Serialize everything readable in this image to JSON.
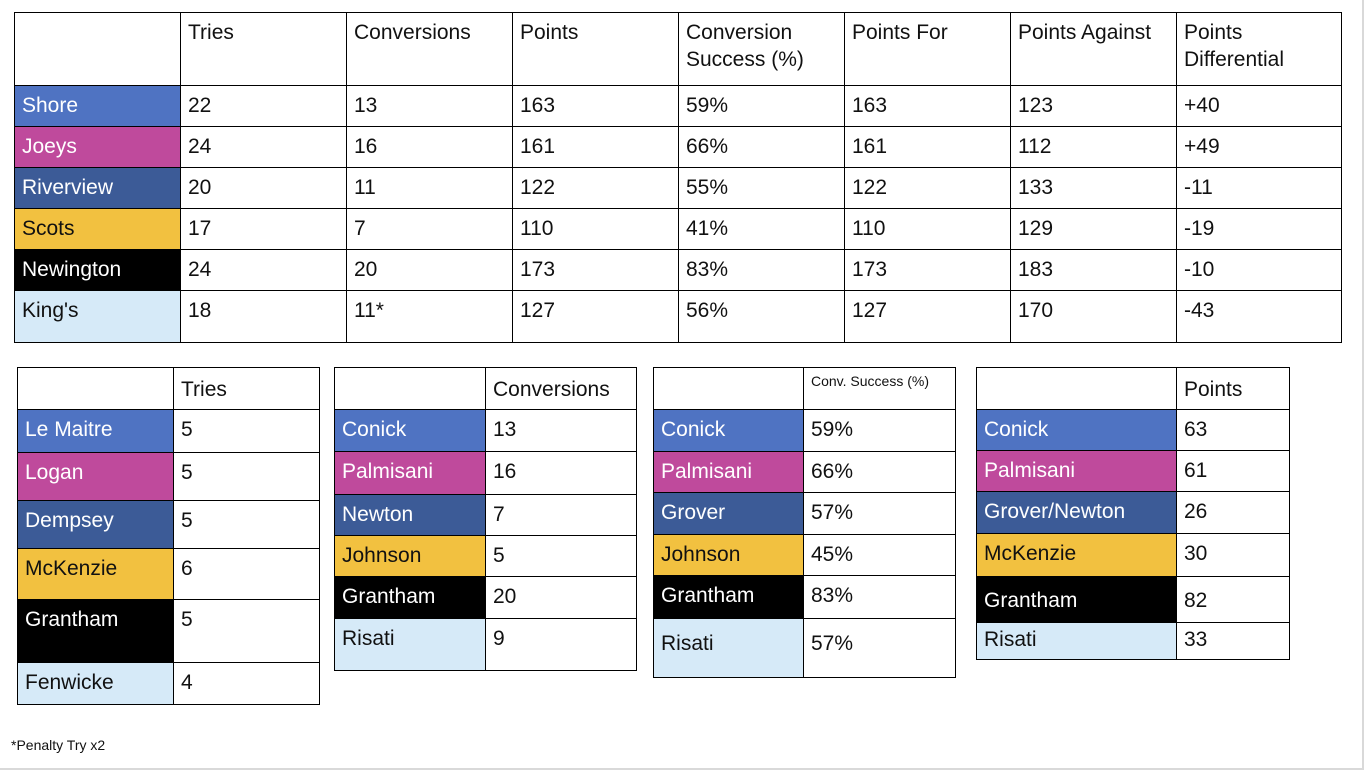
{
  "colors": {
    "shore": "#4f73c2",
    "joeys": "#bf4a9c",
    "riverview": "#3c5b97",
    "scots": "#f2c140",
    "newington": "#000000",
    "kings": "#d6eaf8"
  },
  "main_table": {
    "headers": [
      "",
      "Tries",
      "Conversions",
      "Points",
      "Conversion Success (%)",
      "Points For",
      "Points Against",
      "Points Differential"
    ],
    "rows": [
      {
        "team": "Shore",
        "tries": "22",
        "conversions": "13",
        "points": "163",
        "conv_success": "59%",
        "points_for": "163",
        "points_against": "123",
        "differential": "+40"
      },
      {
        "team": "Joeys",
        "tries": "24",
        "conversions": "16",
        "points": "161",
        "conv_success": "66%",
        "points_for": "161",
        "points_against": "112",
        "differential": "+49"
      },
      {
        "team": "Riverview",
        "tries": "20",
        "conversions": "11",
        "points": "122",
        "conv_success": "55%",
        "points_for": "122",
        "points_against": "133",
        "differential": "-11"
      },
      {
        "team": "Scots",
        "tries": "17",
        "conversions": "7",
        "points": "110",
        "conv_success": "41%",
        "points_for": "110",
        "points_against": "129",
        "differential": "-19"
      },
      {
        "team": "Newington",
        "tries": "24",
        "conversions": "20",
        "points": "173",
        "conv_success": "83%",
        "points_for": "173",
        "points_against": "183",
        "differential": "-10"
      },
      {
        "team": "King's",
        "tries": "18",
        "conversions": "11*",
        "points": "127",
        "conv_success": "56%",
        "points_for": "127",
        "points_against": "170",
        "differential": "-43"
      }
    ]
  },
  "tries_table": {
    "header": "Tries",
    "rows": [
      {
        "player": "Le Maitre",
        "value": "5"
      },
      {
        "player": "Logan",
        "value": "5"
      },
      {
        "player": "Dempsey",
        "value": "5"
      },
      {
        "player": "McKenzie",
        "value": "6"
      },
      {
        "player": "Grantham",
        "value": "5"
      },
      {
        "player": "Fenwicke",
        "value": "4"
      }
    ]
  },
  "conversions_table": {
    "header": "Conversions",
    "rows": [
      {
        "player": "Conick",
        "value": "13"
      },
      {
        "player": "Palmisani",
        "value": "16"
      },
      {
        "player": "Newton",
        "value": "7"
      },
      {
        "player": "Johnson",
        "value": "5"
      },
      {
        "player": "Grantham",
        "value": "20"
      },
      {
        "player": "Risati",
        "value": "9"
      }
    ]
  },
  "success_table": {
    "header": "Conv. Success (%)",
    "rows": [
      {
        "player": "Conick",
        "value": "59%"
      },
      {
        "player": "Palmisani",
        "value": "66%"
      },
      {
        "player": "Grover",
        "value": "57%"
      },
      {
        "player": "Johnson",
        "value": "45%"
      },
      {
        "player": "Grantham",
        "value": "83%"
      },
      {
        "player": "Risati",
        "value": "57%"
      }
    ]
  },
  "points_table": {
    "header": "Points",
    "rows": [
      {
        "player": "Conick",
        "value": "63"
      },
      {
        "player": "Palmisani",
        "value": "61"
      },
      {
        "player": "Grover/Newton",
        "value": "26"
      },
      {
        "player": "McKenzie",
        "value": "30"
      },
      {
        "player": "Grantham",
        "value": "82"
      },
      {
        "player": "Risati",
        "value": "33"
      }
    ]
  },
  "footnote": "*Penalty Try x2"
}
